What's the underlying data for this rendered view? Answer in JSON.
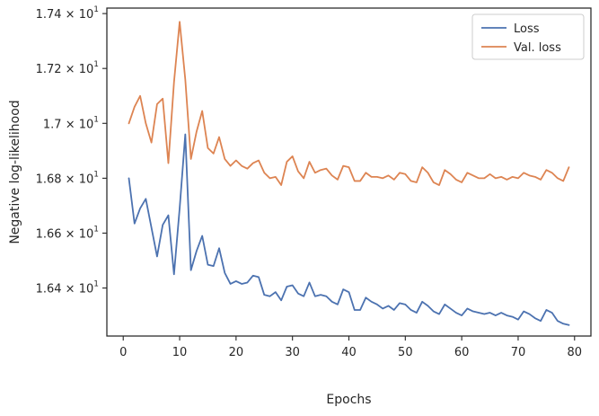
{
  "chart_data": {
    "type": "line",
    "title": "",
    "xlabel": "Epochs",
    "ylabel": "Negative log-likelihood",
    "xlim": [
      -2.9,
      82.9
    ],
    "ylim": [
      16.225,
      17.42
    ],
    "xticks": [
      0,
      10,
      20,
      30,
      40,
      50,
      60,
      70,
      80
    ],
    "xtick_labels": [
      "0",
      "10",
      "20",
      "30",
      "40",
      "50",
      "60",
      "70",
      "80"
    ],
    "yticks": [
      16.4,
      16.6,
      16.8,
      17.0,
      17.2,
      17.4
    ],
    "ytick_labels": [
      {
        "mantissa": "1.64",
        "exponent": "1"
      },
      {
        "mantissa": "1.66",
        "exponent": "1"
      },
      {
        "mantissa": "1.68",
        "exponent": "1"
      },
      {
        "mantissa": "1.7",
        "exponent": "1"
      },
      {
        "mantissa": "1.72",
        "exponent": "1"
      },
      {
        "mantissa": "1.74",
        "exponent": "1"
      }
    ],
    "grid": false,
    "legend_position": "top-right",
    "x": [
      1,
      2,
      3,
      4,
      5,
      6,
      7,
      8,
      9,
      10,
      11,
      12,
      13,
      14,
      15,
      16,
      17,
      18,
      19,
      20,
      21,
      22,
      23,
      24,
      25,
      26,
      27,
      28,
      29,
      30,
      31,
      32,
      33,
      34,
      35,
      36,
      37,
      38,
      39,
      40,
      41,
      42,
      43,
      44,
      45,
      46,
      47,
      48,
      49,
      50,
      51,
      52,
      53,
      54,
      55,
      56,
      57,
      58,
      59,
      60,
      61,
      62,
      63,
      64,
      65,
      66,
      67,
      68,
      69,
      70,
      71,
      72,
      73,
      74,
      75,
      76,
      77,
      78,
      79
    ],
    "series": [
      {
        "name": "Loss",
        "color": "#4c72b0",
        "values": [
          16.8,
          16.635,
          16.69,
          16.725,
          16.62,
          16.515,
          16.63,
          16.665,
          16.45,
          16.69,
          16.96,
          16.465,
          16.535,
          16.59,
          16.485,
          16.48,
          16.545,
          16.455,
          16.415,
          16.425,
          16.415,
          16.42,
          16.445,
          16.44,
          16.375,
          16.37,
          16.385,
          16.355,
          16.405,
          16.41,
          16.38,
          16.37,
          16.42,
          16.37,
          16.375,
          16.37,
          16.35,
          16.34,
          16.395,
          16.385,
          16.32,
          16.32,
          16.365,
          16.35,
          16.34,
          16.325,
          16.335,
          16.32,
          16.345,
          16.34,
          16.32,
          16.31,
          16.35,
          16.335,
          16.315,
          16.305,
          16.34,
          16.325,
          16.31,
          16.3,
          16.325,
          16.315,
          16.31,
          16.305,
          16.31,
          16.3,
          16.31,
          16.3,
          16.295,
          16.285,
          16.315,
          16.305,
          16.29,
          16.28,
          16.32,
          16.31,
          16.28,
          16.27,
          16.265
        ]
      },
      {
        "name": "Val. loss",
        "color": "#dd8452",
        "values": [
          17.0,
          17.06,
          17.1,
          17.0,
          16.93,
          17.07,
          17.09,
          16.855,
          17.15,
          17.37,
          17.16,
          16.87,
          16.97,
          17.045,
          16.91,
          16.89,
          16.95,
          16.87,
          16.845,
          16.865,
          16.845,
          16.835,
          16.855,
          16.865,
          16.82,
          16.8,
          16.805,
          16.775,
          16.86,
          16.88,
          16.825,
          16.8,
          16.86,
          16.82,
          16.83,
          16.835,
          16.81,
          16.795,
          16.845,
          16.84,
          16.79,
          16.79,
          16.82,
          16.805,
          16.805,
          16.8,
          16.81,
          16.795,
          16.82,
          16.815,
          16.79,
          16.785,
          16.84,
          16.82,
          16.785,
          16.775,
          16.83,
          16.815,
          16.795,
          16.785,
          16.82,
          16.81,
          16.8,
          16.8,
          16.815,
          16.8,
          16.805,
          16.795,
          16.805,
          16.8,
          16.82,
          16.81,
          16.805,
          16.795,
          16.83,
          16.82,
          16.8,
          16.79,
          16.84
        ]
      }
    ]
  }
}
